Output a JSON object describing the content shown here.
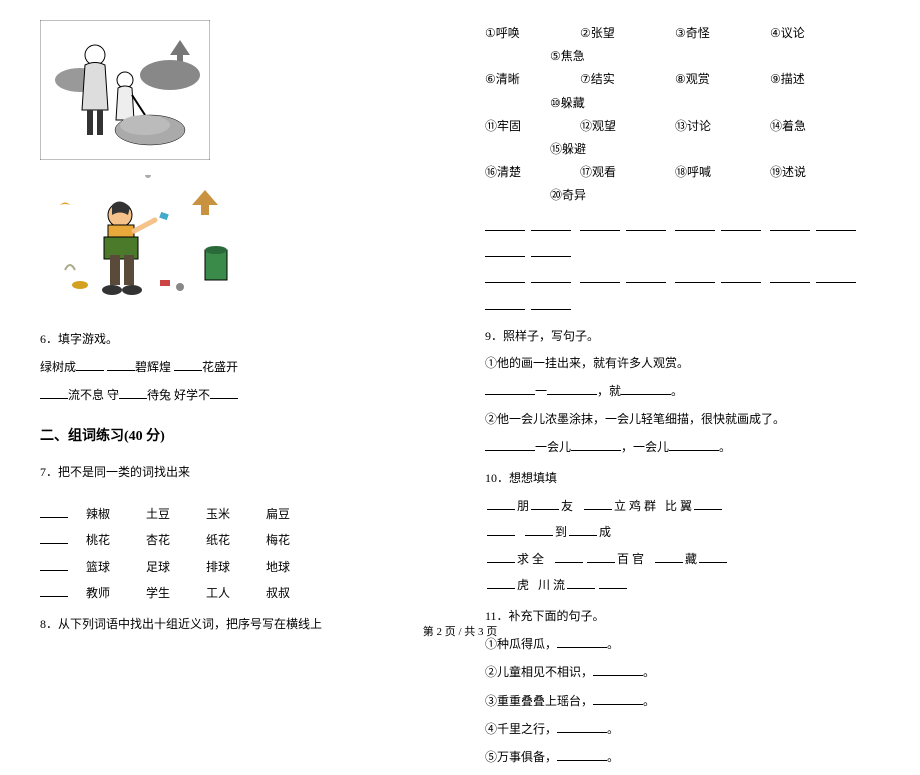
{
  "left": {
    "q6": {
      "prompt": "6．填字游戏。",
      "line1_parts": [
        "绿树成",
        "碧辉煌",
        "花盛开"
      ],
      "line2_parts": [
        "流不息 守",
        "待兔 好学不"
      ]
    },
    "section2_title": "二、组词练习(40 分)",
    "q7": {
      "prompt": "7．把不是同一类的词找出来",
      "rows": [
        [
          "辣椒",
          "土豆",
          "玉米",
          "扁豆"
        ],
        [
          "桃花",
          "杏花",
          "纸花",
          "梅花"
        ],
        [
          "篮球",
          "足球",
          "排球",
          "地球"
        ],
        [
          "教师",
          "学生",
          "工人",
          "叔叔"
        ]
      ]
    },
    "q8": {
      "prompt": "8．从下列词语中找出十组近义词，把序号写在横线上"
    }
  },
  "right": {
    "numbered_words": [
      [
        {
          "n": "①",
          "w": "呼唤"
        },
        {
          "n": "②",
          "w": "张望"
        },
        {
          "n": "③",
          "w": "奇怪"
        },
        {
          "n": "④",
          "w": "议论"
        }
      ],
      [
        {
          "n": "⑤",
          "w": "焦急"
        }
      ],
      [
        {
          "n": "⑥",
          "w": "清晰"
        },
        {
          "n": "⑦",
          "w": "结实"
        },
        {
          "n": "⑧",
          "w": "观赏"
        },
        {
          "n": "⑨",
          "w": "描述"
        }
      ],
      [
        {
          "n": "⑩",
          "w": "躲藏"
        }
      ],
      [
        {
          "n": "⑪",
          "w": "牢固"
        },
        {
          "n": "⑫",
          "w": "观望"
        },
        {
          "n": "⑬",
          "w": "讨论"
        },
        {
          "n": "⑭",
          "w": "着急"
        }
      ],
      [
        {
          "n": "⑮",
          "w": "躲避"
        }
      ],
      [
        {
          "n": "⑯",
          "w": "清楚"
        },
        {
          "n": "⑰",
          "w": "观看"
        },
        {
          "n": "⑱",
          "w": "呼喊"
        },
        {
          "n": "⑲",
          "w": "述说"
        }
      ],
      [
        {
          "n": "⑳",
          "w": "奇异"
        }
      ]
    ],
    "q9": {
      "prompt": "9．照样子，写句子。",
      "ex1_a": "①他的画一挂出来，就有许多人观赏。",
      "ex1_b_pre": "一",
      "ex1_b_mid": "，就",
      "ex1_b_end": "。",
      "ex2_a": "②他一会儿浓墨涂抹，一会儿轻笔细描，很快就画成了。",
      "ex2_b_pre": "一会儿",
      "ex2_b_mid": "，一会儿",
      "ex2_b_end": "。"
    },
    "q10": {
      "prompt": "10．想想填填",
      "row1": [
        "朋",
        "友",
        "立 鸡 群",
        "比 翼"
      ],
      "row2": [
        "到",
        "成"
      ],
      "row3_a": "求 全",
      "row3_b": "百 官",
      "row3_c": "藏",
      "row4_a": "虎",
      "row4_b": "川 流"
    },
    "q11": {
      "prompt": "11．补充下面的句子。",
      "items": [
        "①种瓜得瓜，",
        "②儿童相见不相识，",
        "③重重叠叠上瑶台，",
        "④千里之行，",
        "⑤万事俱备，"
      ],
      "period": "。"
    }
  },
  "footer": "第 2 页  / 共 3 页"
}
